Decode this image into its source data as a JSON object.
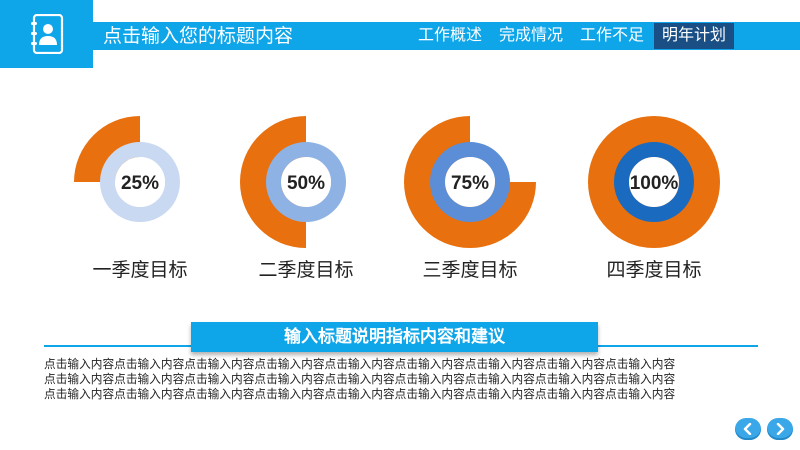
{
  "header": {
    "title": "点击输入您的标题内容",
    "nav": [
      "工作概述",
      "完成情况",
      "工作不足",
      "明年计划"
    ],
    "active_nav": 3,
    "logo_icon": "contact-book-icon"
  },
  "chart_data": {
    "type": "pie",
    "series": [
      {
        "category": "一季度目标",
        "value": 25,
        "label": "25%"
      },
      {
        "category": "二季度目标",
        "value": 50,
        "label": "50%"
      },
      {
        "category": "三季度目标",
        "value": 75,
        "label": "75%"
      },
      {
        "category": "四季度目标",
        "value": 100,
        "label": "100%"
      }
    ],
    "ring_colors": [
      "#c9d9f1",
      "#8eb2e3",
      "#5b8ed6",
      "#1a6bbf"
    ],
    "accent": "#e8700e"
  },
  "subtitle": "输入标题说明指标内容和建议",
  "description_lines": [
    "点击输入内容点击输入内容点击输入内容点击输入内容点击输入内容点击输入内容点击输入内容点击输入内容点击输入内容",
    "点击输入内容点击输入内容点击输入内容点击输入内容点击输入内容点击输入内容点击输入内容点击输入内容点击输入内容",
    "点击输入内容点击输入内容点击输入内容点击输入内容点击输入内容点击输入内容点击输入内容点击输入内容点击输入内容"
  ],
  "footer": {
    "prev_icon": "chevron-left-icon",
    "next_icon": "chevron-right-icon"
  }
}
